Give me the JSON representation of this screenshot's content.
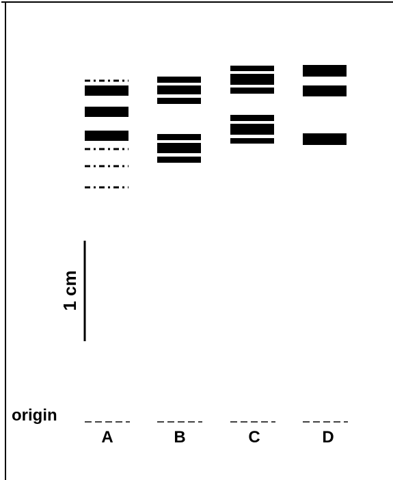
{
  "scale_bar": {
    "label": "1 cm"
  },
  "origin": {
    "label": "origin"
  },
  "lanes": [
    {
      "label": "A"
    },
    {
      "label": "B"
    },
    {
      "label": "C"
    },
    {
      "label": "D"
    }
  ]
}
